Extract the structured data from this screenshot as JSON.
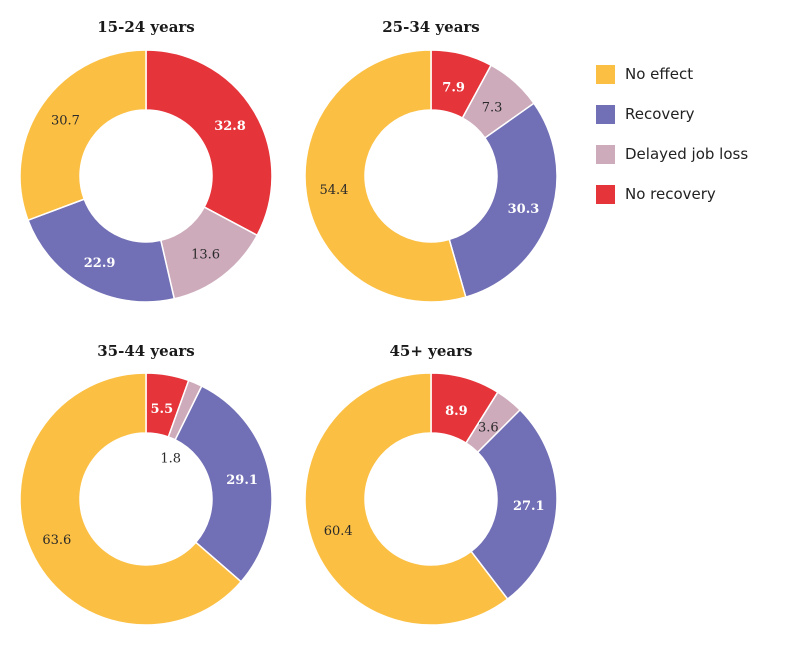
{
  "chart_data": [
    {
      "type": "pie",
      "title": "15-24 years",
      "categories": [
        "No recovery",
        "Delayed job loss",
        "Recovery",
        "No effect"
      ],
      "values": [
        32.8,
        13.6,
        22.9,
        30.7
      ],
      "labels": [
        "32.8",
        "13.6",
        "22.9",
        "30.7"
      ]
    },
    {
      "type": "pie",
      "title": "25-34 years",
      "categories": [
        "No recovery",
        "Delayed job loss",
        "Recovery",
        "No effect"
      ],
      "values": [
        7.9,
        7.3,
        30.3,
        54.4
      ],
      "labels": [
        "7.9",
        "7.3",
        "30.3",
        "54.4"
      ]
    },
    {
      "type": "pie",
      "title": "35-44 years",
      "categories": [
        "No recovery",
        "Delayed job loss",
        "Recovery",
        "No effect"
      ],
      "values": [
        5.5,
        1.8,
        29.1,
        63.6
      ],
      "labels": [
        "5.5",
        "1.8",
        "29.1",
        "63.6"
      ]
    },
    {
      "type": "pie",
      "title": "45+ years",
      "categories": [
        "No recovery",
        "Delayed job loss",
        "Recovery",
        "No effect"
      ],
      "values": [
        8.9,
        3.6,
        27.1,
        60.4
      ],
      "labels": [
        "8.9",
        "3.6",
        "27.1",
        "60.4"
      ]
    }
  ],
  "legend": {
    "placement": "right",
    "items": [
      {
        "label": "No effect",
        "color": "#fbbf43"
      },
      {
        "label": "Recovery",
        "color": "#716fb5"
      },
      {
        "label": "Delayed job loss",
        "color": "#cdabbb"
      },
      {
        "label": "No recovery",
        "color": "#e5343a"
      }
    ]
  },
  "colors": {
    "No effect": "#fbbf43",
    "Recovery": "#716fb5",
    "Delayed job loss": "#cdabbb",
    "No recovery": "#e5343a"
  }
}
